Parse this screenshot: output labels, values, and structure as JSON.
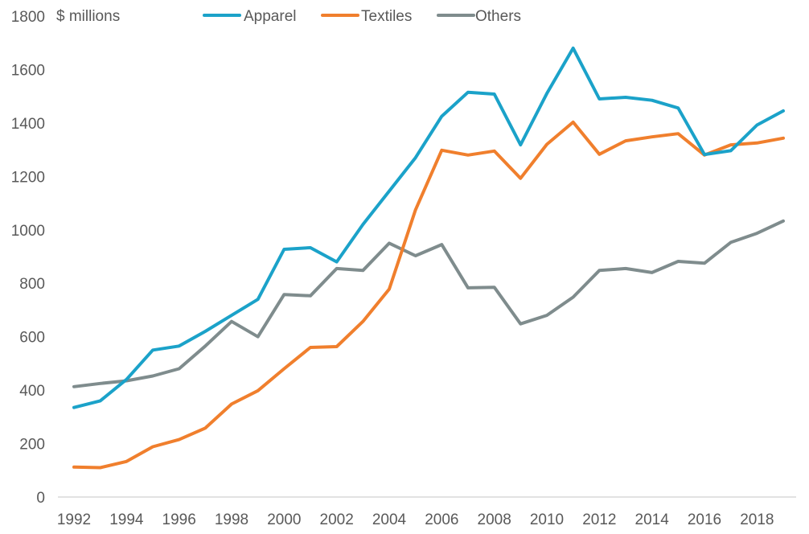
{
  "chart_data": {
    "type": "line",
    "unit_label": "$ millions",
    "x": [
      1992,
      1993,
      1994,
      1995,
      1996,
      1997,
      1998,
      1999,
      2000,
      2001,
      2002,
      2003,
      2004,
      2005,
      2006,
      2007,
      2008,
      2009,
      2010,
      2011,
      2012,
      2013,
      2014,
      2015,
      2016,
      2017,
      2018,
      2019
    ],
    "x_tick_labels": [
      "1992",
      "1994",
      "1996",
      "1998",
      "2000",
      "2002",
      "2004",
      "2006",
      "2008",
      "2010",
      "2012",
      "2014",
      "2016",
      "2018"
    ],
    "y_tick_labels": [
      "0",
      "200",
      "400",
      "600",
      "800",
      "1000",
      "1200",
      "1400",
      "1600",
      "1800"
    ],
    "ylim": [
      0,
      1800
    ],
    "grid": false,
    "legend_position": "top",
    "series": [
      {
        "name": "Apparel",
        "color": "#1BA2C9",
        "values": [
          335,
          360,
          440,
          550,
          565,
          620,
          680,
          740,
          927,
          933,
          880,
          1020,
          1145,
          1270,
          1425,
          1515,
          1508,
          1318,
          1510,
          1680,
          1490,
          1496,
          1485,
          1456,
          1282,
          1296,
          1392,
          1445
        ]
      },
      {
        "name": "Textiles",
        "color": "#F07F2D",
        "values": [
          112,
          110,
          133,
          188,
          215,
          258,
          348,
          398,
          480,
          560,
          563,
          657,
          778,
          1075,
          1298,
          1280,
          1295,
          1193,
          1320,
          1403,
          1283,
          1333,
          1348,
          1360,
          1280,
          1318,
          1325,
          1343
        ]
      },
      {
        "name": "Others",
        "color": "#7F8C8D",
        "values": [
          413,
          425,
          435,
          453,
          480,
          565,
          657,
          600,
          758,
          753,
          855,
          848,
          950,
          903,
          945,
          783,
          785,
          648,
          680,
          748,
          848,
          855,
          840,
          882,
          875,
          953,
          987,
          1033
        ]
      }
    ]
  }
}
